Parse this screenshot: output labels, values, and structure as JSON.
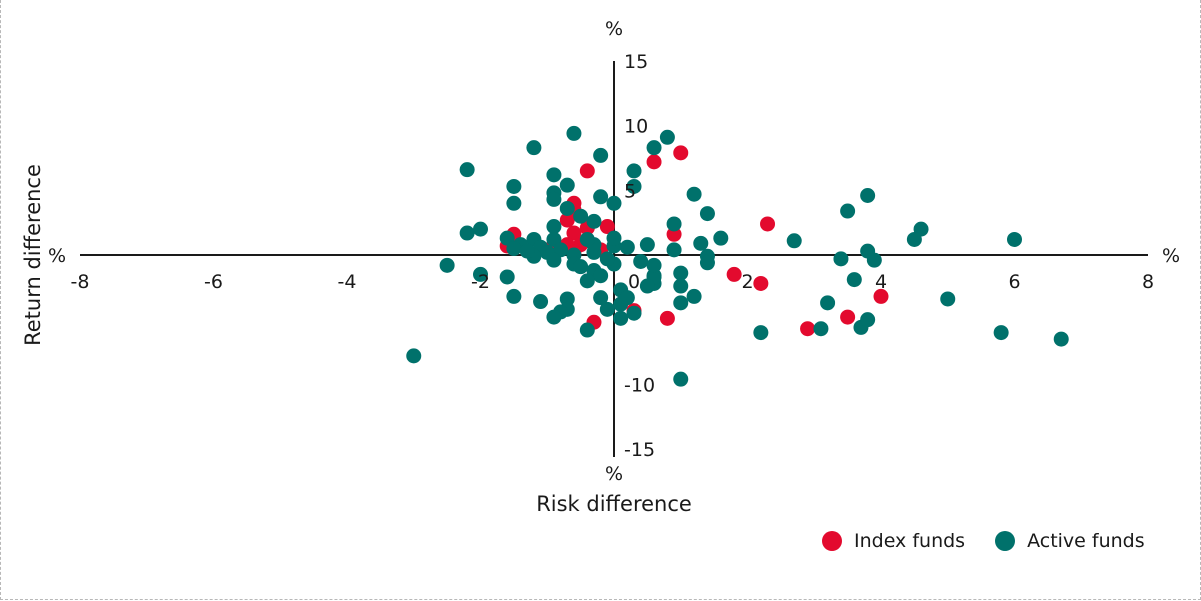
{
  "chart_data": {
    "type": "scatter",
    "xlabel": "Risk difference",
    "ylabel": "Return difference",
    "x_unit": "%",
    "y_unit": "%",
    "xlim": [
      -8,
      8
    ],
    "ylim": [
      -15,
      15
    ],
    "x_ticks": [
      "-8",
      "-6",
      "-4",
      "-2",
      "0",
      "2",
      "4",
      "6",
      "8"
    ],
    "y_ticks": [
      "15",
      "10",
      "5",
      "0",
      "-10",
      "-15"
    ],
    "series": [
      {
        "name": "Index funds",
        "color": "#e30a2e",
        "points": [
          [
            -0.4,
            6.5
          ],
          [
            0.6,
            7.2
          ],
          [
            1.0,
            7.9
          ],
          [
            -0.6,
            4.0
          ],
          [
            -0.6,
            3.5
          ],
          [
            -0.7,
            2.7
          ],
          [
            -0.4,
            2.1
          ],
          [
            -0.6,
            1.7
          ],
          [
            -0.1,
            2.2
          ],
          [
            -0.5,
            0.8
          ],
          [
            -0.7,
            0.8
          ],
          [
            -1.5,
            1.6
          ],
          [
            -1.6,
            0.7
          ],
          [
            -1.0,
            0.4
          ],
          [
            0.9,
            1.6
          ],
          [
            2.3,
            2.4
          ],
          [
            1.8,
            -1.5
          ],
          [
            2.2,
            -2.2
          ],
          [
            4.0,
            -3.2
          ],
          [
            3.5,
            -4.8
          ],
          [
            2.9,
            -5.7
          ],
          [
            -0.3,
            -5.2
          ],
          [
            0.3,
            -4.3
          ],
          [
            0.8,
            -4.9
          ],
          [
            -0.6,
            0.2
          ],
          [
            -0.2,
            0.4
          ]
        ]
      },
      {
        "name": "Active funds",
        "color": "#00716b",
        "points": [
          [
            -0.6,
            9.4
          ],
          [
            0.8,
            9.1
          ],
          [
            0.6,
            8.3
          ],
          [
            -0.2,
            7.7
          ],
          [
            0.3,
            6.5
          ],
          [
            -1.2,
            8.3
          ],
          [
            -2.2,
            6.6
          ],
          [
            -1.5,
            5.3
          ],
          [
            -0.7,
            5.4
          ],
          [
            -0.9,
            6.2
          ],
          [
            -0.9,
            4.8
          ],
          [
            -0.9,
            4.3
          ],
          [
            -0.2,
            4.5
          ],
          [
            0.0,
            4.0
          ],
          [
            0.3,
            5.3
          ],
          [
            1.2,
            4.7
          ],
          [
            1.4,
            3.2
          ],
          [
            -1.5,
            4.0
          ],
          [
            -2.0,
            2.0
          ],
          [
            -2.2,
            1.7
          ],
          [
            -0.7,
            3.6
          ],
          [
            -0.5,
            3.0
          ],
          [
            -0.3,
            2.6
          ],
          [
            -0.9,
            2.2
          ],
          [
            -1.2,
            1.2
          ],
          [
            -0.9,
            1.2
          ],
          [
            -1.6,
            1.3
          ],
          [
            0.9,
            2.4
          ],
          [
            1.6,
            1.3
          ],
          [
            1.3,
            0.9
          ],
          [
            2.7,
            1.1
          ],
          [
            3.5,
            3.4
          ],
          [
            3.8,
            4.6
          ],
          [
            4.6,
            2.0
          ],
          [
            4.5,
            1.2
          ],
          [
            6.0,
            1.2
          ],
          [
            3.8,
            0.3
          ],
          [
            3.4,
            -0.3
          ],
          [
            3.9,
            -0.4
          ],
          [
            -0.8,
            0.4
          ],
          [
            -1.4,
            0.8
          ],
          [
            -1.1,
            0.6
          ],
          [
            -1.0,
            0.2
          ],
          [
            -0.6,
            0.0
          ],
          [
            -0.3,
            0.2
          ],
          [
            0.0,
            0.7
          ],
          [
            0.2,
            0.6
          ],
          [
            0.5,
            0.8
          ],
          [
            0.9,
            0.4
          ],
          [
            1.4,
            -0.1
          ],
          [
            1.4,
            -0.6
          ],
          [
            1.0,
            -1.4
          ],
          [
            0.6,
            -1.6
          ],
          [
            0.0,
            -0.7
          ],
          [
            -0.6,
            -0.7
          ],
          [
            -0.9,
            -0.4
          ],
          [
            -1.2,
            -0.1
          ],
          [
            -1.5,
            0.5
          ],
          [
            -1.6,
            -1.7
          ],
          [
            -2.0,
            -1.5
          ],
          [
            -2.5,
            -0.8
          ],
          [
            -3.0,
            -7.8
          ],
          [
            -1.5,
            -3.2
          ],
          [
            -1.1,
            -3.6
          ],
          [
            -0.7,
            -3.4
          ],
          [
            -0.7,
            -4.2
          ],
          [
            -0.8,
            -4.4
          ],
          [
            -0.9,
            -4.8
          ],
          [
            -0.4,
            -5.8
          ],
          [
            0.1,
            -2.7
          ],
          [
            0.2,
            -3.3
          ],
          [
            0.1,
            -3.8
          ],
          [
            -0.1,
            -4.2
          ],
          [
            0.1,
            -4.9
          ],
          [
            0.3,
            -4.5
          ],
          [
            0.6,
            -2.2
          ],
          [
            0.6,
            -1.7
          ],
          [
            1.0,
            -2.4
          ],
          [
            1.2,
            -3.2
          ],
          [
            1.0,
            -3.7
          ],
          [
            1.0,
            -9.6
          ],
          [
            2.2,
            -6.0
          ],
          [
            3.1,
            -5.7
          ],
          [
            3.2,
            -3.7
          ],
          [
            3.6,
            -1.9
          ],
          [
            3.7,
            -5.6
          ],
          [
            3.8,
            -5.0
          ],
          [
            5.0,
            -3.4
          ],
          [
            5.8,
            -6.0
          ],
          [
            6.7,
            -6.5
          ],
          [
            -0.3,
            -1.2
          ],
          [
            -0.2,
            -1.6
          ],
          [
            -0.4,
            -2.0
          ],
          [
            -0.5,
            -0.9
          ],
          [
            -0.1,
            -0.3
          ],
          [
            0.4,
            -0.5
          ],
          [
            0.6,
            -0.8
          ],
          [
            -0.3,
            0.8
          ],
          [
            -0.4,
            1.2
          ],
          [
            0.0,
            1.3
          ],
          [
            -1.3,
            0.3
          ],
          [
            0.5,
            -2.4
          ],
          [
            -0.2,
            -3.3
          ]
        ]
      }
    ]
  }
}
